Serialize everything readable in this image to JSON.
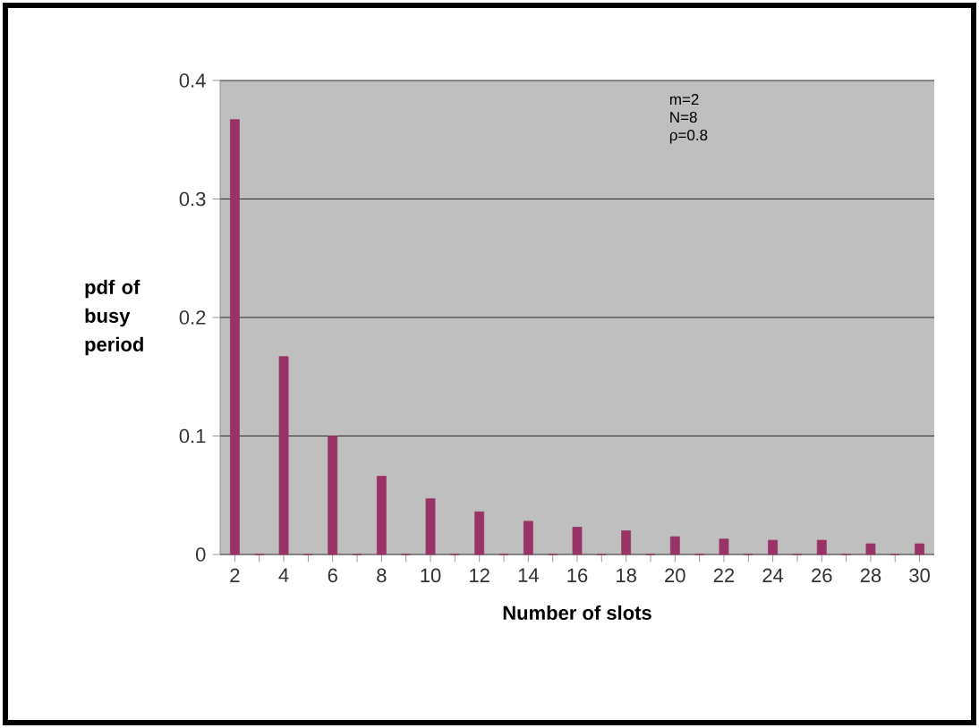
{
  "chart_data": {
    "type": "bar",
    "xlabel": "Number of slots",
    "ylabel": "pdf of busy period",
    "categories": [
      "2",
      null,
      "4",
      null,
      "6",
      null,
      "8",
      null,
      "10",
      null,
      "12",
      null,
      "14",
      null,
      "16",
      null,
      "18",
      null,
      "20",
      null,
      "22",
      null,
      "24",
      null,
      "26",
      null,
      "28",
      null,
      "30"
    ],
    "values": [
      0.367,
      0,
      0.167,
      0,
      0.1,
      0,
      0.066,
      0,
      0.047,
      0,
      0.036,
      0,
      0.028,
      0,
      0.023,
      0,
      0.02,
      0,
      0.015,
      0,
      0.013,
      0,
      0.012,
      0,
      0.012,
      0,
      0.009,
      0,
      0.009
    ],
    "color": "#993366",
    "ylim": [
      0,
      0.4
    ],
    "yticks": [
      0,
      0.1,
      0.2,
      0.3,
      0.4
    ],
    "grid": "y",
    "annotations": [
      "m=2",
      "N=8",
      "ρ=0.8"
    ]
  }
}
